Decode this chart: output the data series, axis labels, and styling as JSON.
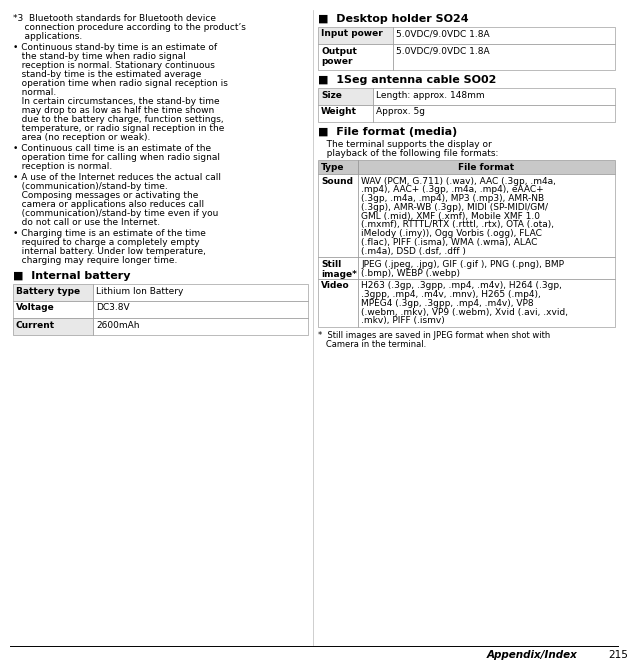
{
  "bg_color": "#ffffff",
  "text_color": "#000000",
  "header_bg": "#c8c8c8",
  "row_alt_bg": "#e8e8e8",
  "row_bg": "#ffffff",
  "border_color": "#888888",
  "page_number": "215",
  "footer_text": "Appendix/Index",
  "note_star3_lines": [
    "*3  Bluetooth standards for Bluetooth device",
    "    connection procedure according to the product’s",
    "    applications."
  ],
  "bullet1_lines": [
    "• Continuous stand-by time is an estimate of",
    "   the stand-by time when radio signal",
    "   reception is normal. Stationary continuous",
    "   stand-by time is the estimated average",
    "   operation time when radio signal reception is",
    "   normal.",
    "   In certain circumstances, the stand-by time",
    "   may drop to as low as half the time shown",
    "   due to the battery charge, function settings,",
    "   temperature, or radio signal reception in the",
    "   area (no reception or weak)."
  ],
  "bullet2_lines": [
    "• Continuous call time is an estimate of the",
    "   operation time for calling when radio signal",
    "   reception is normal."
  ],
  "bullet3_lines": [
    "• A use of the Internet reduces the actual call",
    "   (communication)/stand-by time.",
    "   Composing messages or activating the",
    "   camera or applications also reduces call",
    "   (communication)/stand-by time even if you",
    "   do not call or use the Internet."
  ],
  "bullet4_lines": [
    "• Charging time is an estimate of the time",
    "   required to charge a completely empty",
    "   internal battery. Under low temperature,",
    "   charging may require longer time."
  ],
  "internal_battery_title": "■  Internal battery",
  "internal_battery_rows": [
    {
      "label": "Battery type",
      "value": "Lithium Ion Battery"
    },
    {
      "label": "Voltage",
      "value": "DC3.8V"
    },
    {
      "label": "Current",
      "value": "2600mAh"
    }
  ],
  "desktop_holder_title": "■  Desktop holder SO24",
  "desktop_holder_rows": [
    {
      "label": "Input power",
      "value": "5.0VDC/9.0VDC 1.8A"
    },
    {
      "label": "Output\npower",
      "value": "5.0VDC/9.0VDC 1.8A"
    }
  ],
  "antenna_cable_title": "■  1Seg antenna cable SO02",
  "antenna_cable_rows": [
    {
      "label": "Size",
      "value": "Length: approx. 148mm"
    },
    {
      "label": "Weight",
      "value": "Approx. 5g"
    }
  ],
  "file_format_title": "■  File format (media)",
  "file_format_subtitle_lines": [
    "   The terminal supports the display or",
    "   playback of the following file formats:"
  ],
  "file_format_header": [
    "Type",
    "File format"
  ],
  "file_format_rows": [
    {
      "type": "Sound",
      "format_lines": [
        "WAV (PCM, G.711) (.wav), AAC (.3gp, .m4a,",
        ".mp4), AAC+ (.3gp, .m4a, .mp4), eAAC+",
        "(.3gp, .m4a, .mp4), MP3 (.mp3), AMR-NB",
        "(.3gp), AMR-WB (.3gp), MIDI (SP-MIDI/GM/",
        "GML (.mid), XMF (.xmf), Mobile XMF 1.0",
        "(.mxmf), RTTTL/RTX (.rtttl, .rtx), OTA (.ota),",
        "iMelody (.imy)), Ogg Vorbis (.ogg), FLAC",
        "(.flac), PIFF (.isma), WMA (.wma), ALAC",
        "(.m4a), DSD (.dsf, .dff )"
      ]
    },
    {
      "type": "Still\nimage*",
      "format_lines": [
        "JPEG (.jpeg, .jpg), GIF (.gif ), PNG (.png), BMP",
        "(.bmp), WEBP (.webp)"
      ]
    },
    {
      "type": "Video",
      "format_lines": [
        "H263 (.3gp, .3gpp, .mp4, .m4v), H264 (.3gp,",
        ".3gpp, .mp4, .m4v, .mnv), H265 (.mp4),",
        "MPEG4 (.3gp, .3gpp, .mp4, .m4v), VP8",
        "(.webm, .mkv), VP9 (.webm), Xvid (.avi, .xvid,",
        ".mkv), PIFF (.ismv)"
      ]
    }
  ],
  "file_format_footnote_lines": [
    "*  Still images are saved in JPEG format when shot with",
    "   Camera in the terminal."
  ]
}
